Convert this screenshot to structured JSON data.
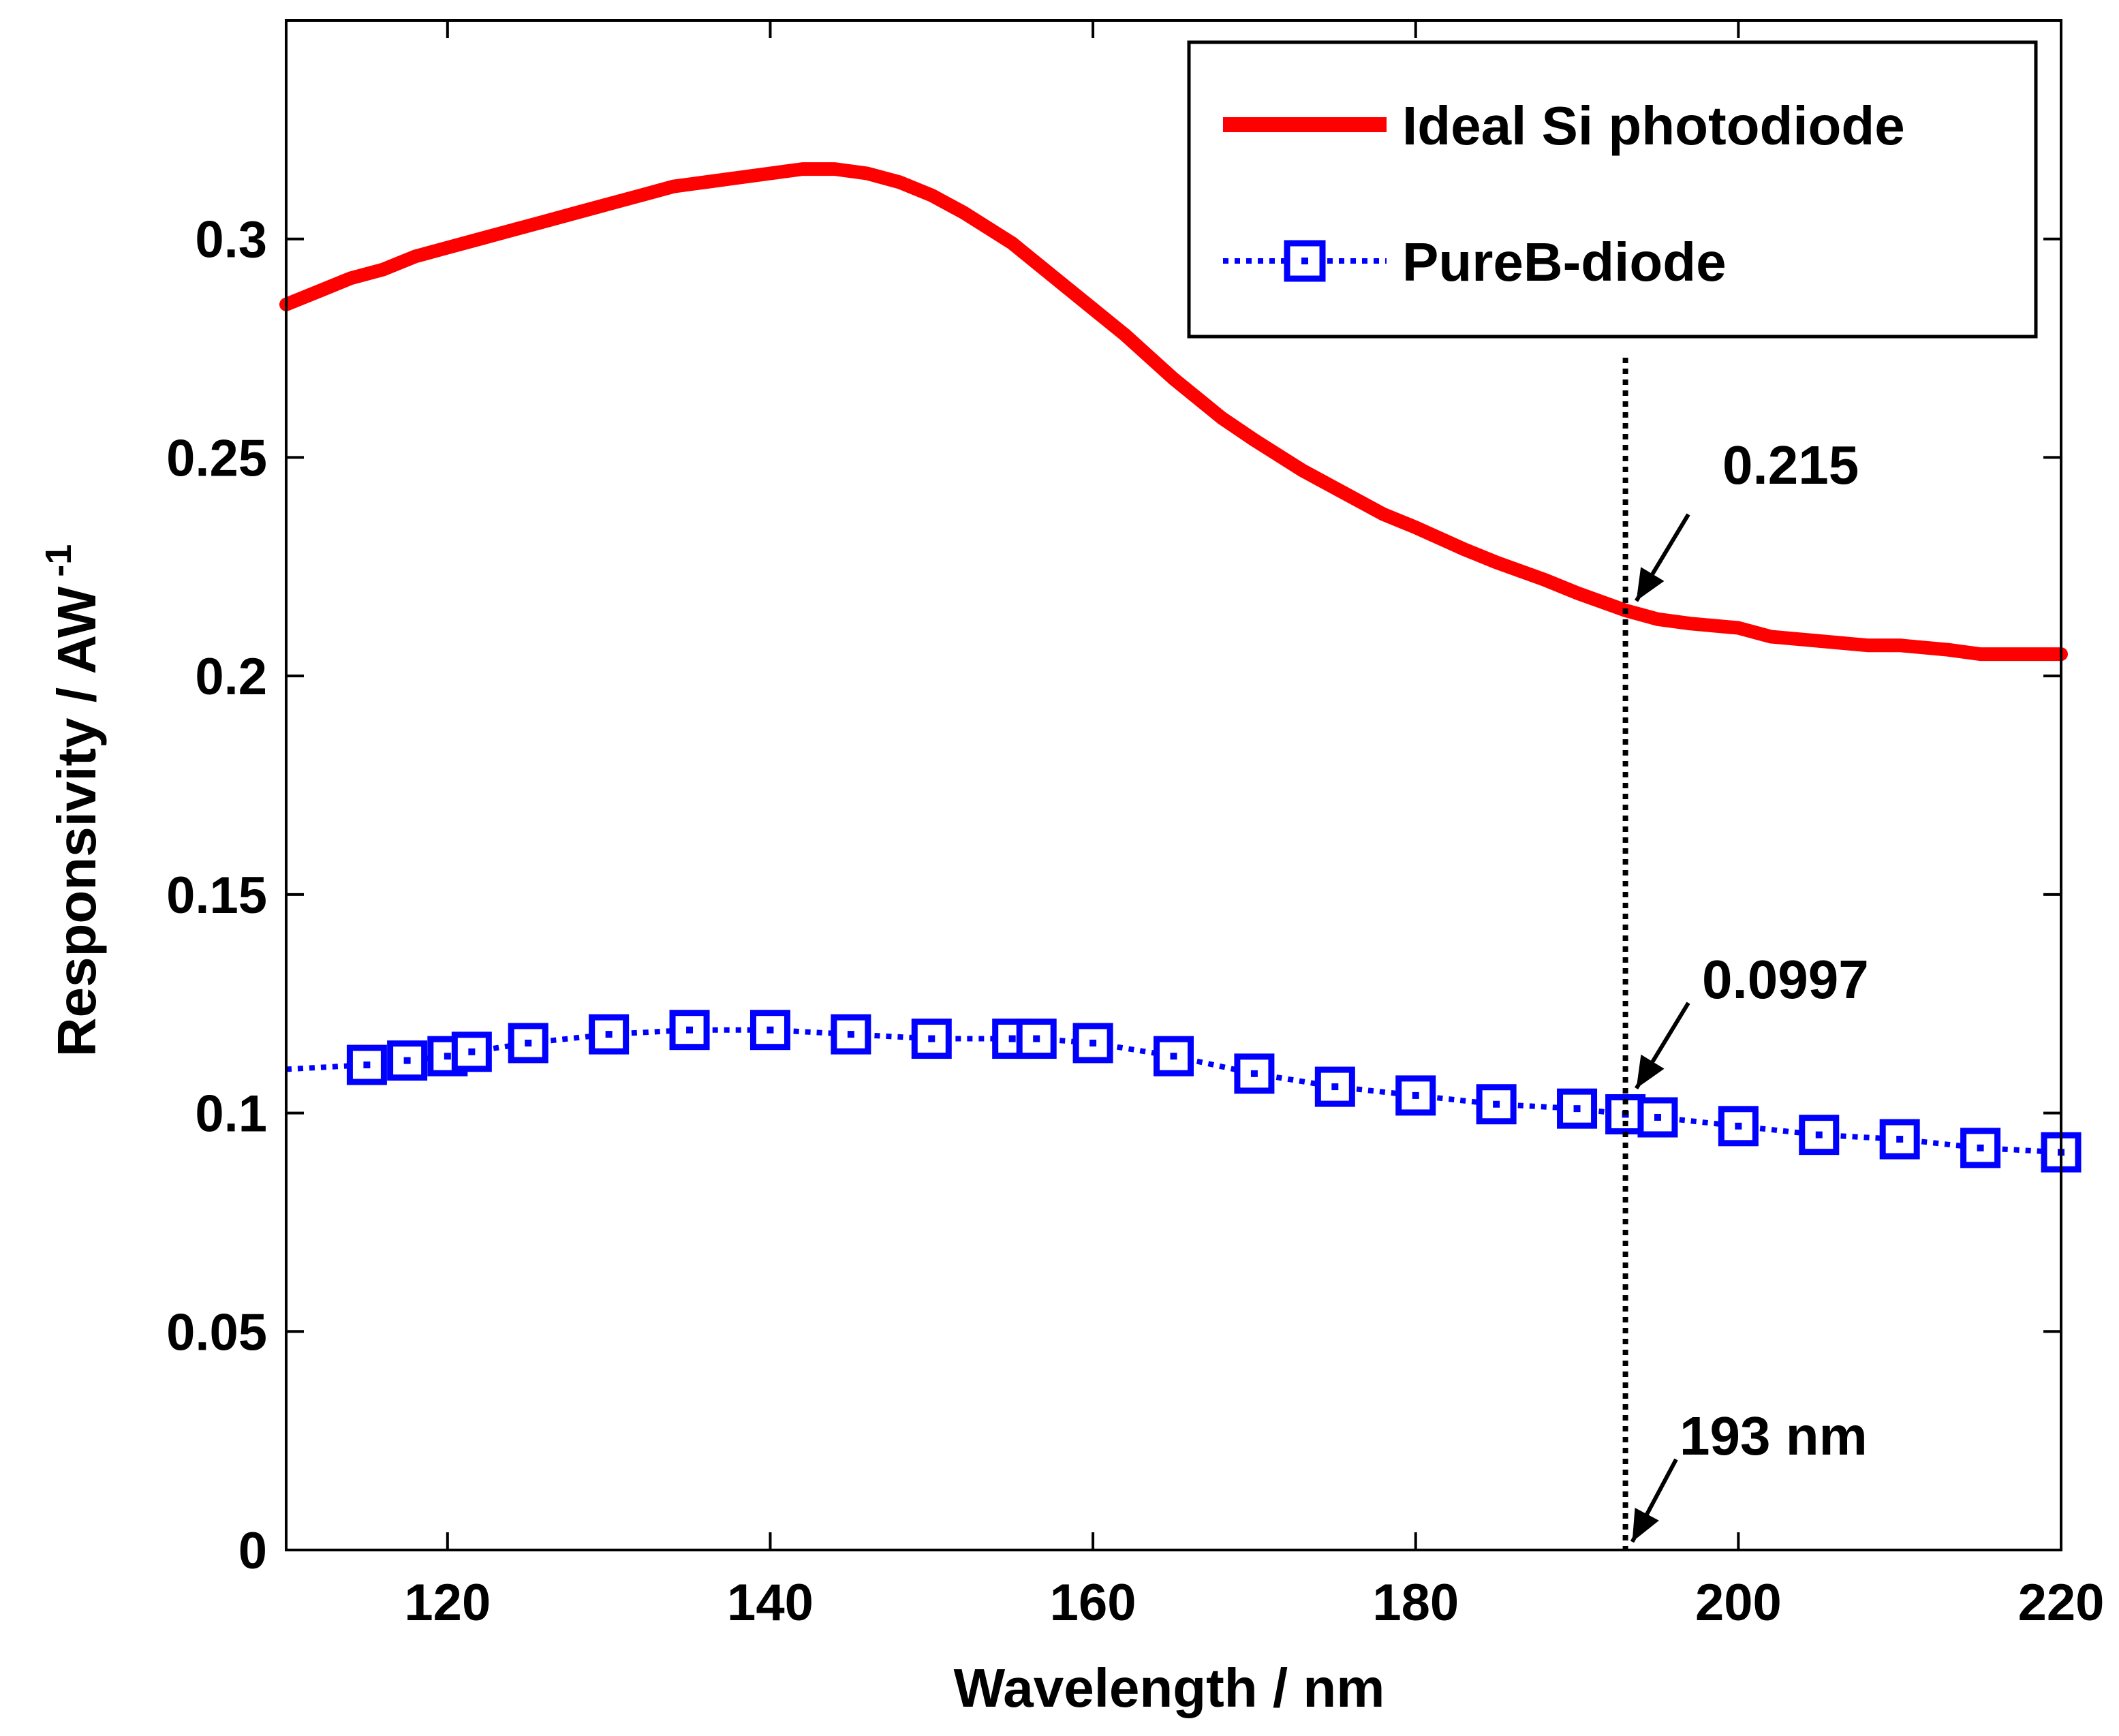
{
  "chart_data": {
    "type": "line",
    "title": "",
    "xlabel": "Wavelength / nm",
    "ylabel_main": "Responsivity / AW",
    "ylabel_sup": "-1",
    "xlim": [
      110,
      220
    ],
    "ylim": [
      0,
      0.35
    ],
    "x_ticks": [
      120,
      140,
      160,
      180,
      200,
      220
    ],
    "x_tick_labels": [
      "120",
      "140",
      "160",
      "180",
      "200",
      "220"
    ],
    "y_ticks": [
      0,
      0.05,
      0.1,
      0.15,
      0.2,
      0.25,
      0.3
    ],
    "y_tick_labels": [
      "0",
      "0.05",
      "0.1",
      "0.15",
      "0.2",
      "0.25",
      "0.3"
    ],
    "grid": false,
    "legend_position": "top-right",
    "series": [
      {
        "name": "Ideal Si photodiode",
        "color": "#ff0000",
        "style": "solid",
        "marker": "none",
        "x": [
          110,
          112,
          114,
          116,
          118,
          120,
          122,
          124,
          126,
          128,
          130,
          132,
          134,
          136,
          138,
          140,
          142,
          144,
          146,
          148,
          150,
          152,
          155,
          158,
          160,
          162,
          165,
          168,
          170,
          173,
          175,
          178,
          180,
          183,
          185,
          188,
          190,
          193,
          195,
          197,
          200,
          202,
          205,
          208,
          210,
          213,
          215,
          218,
          220
        ],
        "y": [
          0.285,
          0.288,
          0.291,
          0.293,
          0.296,
          0.298,
          0.3,
          0.302,
          0.304,
          0.306,
          0.308,
          0.31,
          0.312,
          0.313,
          0.314,
          0.315,
          0.316,
          0.316,
          0.315,
          0.313,
          0.31,
          0.306,
          0.299,
          0.29,
          0.284,
          0.278,
          0.268,
          0.259,
          0.254,
          0.247,
          0.243,
          0.237,
          0.234,
          0.229,
          0.226,
          0.222,
          0.219,
          0.215,
          0.213,
          0.212,
          0.211,
          0.209,
          0.208,
          0.207,
          0.207,
          0.206,
          0.205,
          0.205,
          0.205
        ]
      },
      {
        "name": "PureB-diode",
        "color": "#0000ff",
        "style": "dotted",
        "marker": "square",
        "x": [
          110,
          115,
          117.5,
          120,
          121.5,
          125,
          130,
          135,
          140,
          145,
          150,
          155,
          156.5,
          160,
          165,
          170,
          175,
          180,
          185,
          190,
          193,
          195,
          200,
          205,
          210,
          215,
          220
        ],
        "y": [
          0.11,
          0.111,
          0.112,
          0.113,
          0.114,
          0.116,
          0.118,
          0.119,
          0.119,
          0.118,
          0.117,
          0.117,
          0.117,
          0.116,
          0.113,
          0.109,
          0.106,
          0.104,
          0.102,
          0.101,
          0.0997,
          0.099,
          0.097,
          0.095,
          0.094,
          0.092,
          0.091
        ],
        "marker_x": [
          115,
          117.5,
          120,
          121.5,
          125,
          130,
          135,
          140,
          145,
          150,
          155,
          156.5,
          160,
          165,
          170,
          175,
          180,
          185,
          190,
          193,
          195,
          200,
          205,
          210,
          215,
          220
        ]
      }
    ],
    "reference_line": {
      "x": 193,
      "style": "dotted",
      "color": "#000000"
    },
    "annotations": [
      {
        "label": "0.215",
        "x": 193,
        "y": 0.215
      },
      {
        "label": "0.0997",
        "x": 193,
        "y": 0.0997
      },
      {
        "label": "193 nm",
        "x": 193,
        "y": 0
      }
    ]
  }
}
